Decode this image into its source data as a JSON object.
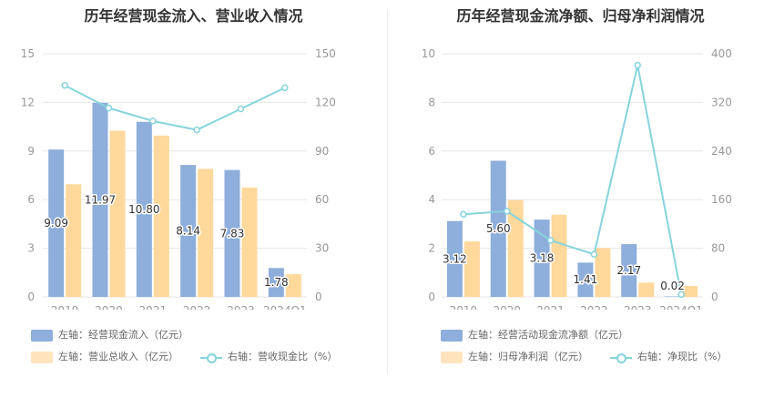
{
  "colors": {
    "bar1": "#8eaedb",
    "bar2": "#ffd89b",
    "line": "#86d4dc",
    "grid": "#e6e6e6",
    "axis_text": "#999999"
  },
  "panels": [
    {
      "title": "历年经营现金流入、营业收入情况",
      "legend": {
        "bar1": "左轴：经营现金流入（亿元）",
        "bar2": "左轴：营业总收入（亿元）",
        "line": "右轴：营收现金比（%）"
      },
      "chart_data": {
        "type": "bar",
        "categories": [
          "2019",
          "2020",
          "2021",
          "2022",
          "2023",
          "2024Q1"
        ],
        "left_ticks": [
          "0",
          "3",
          "6",
          "9",
          "12",
          "15"
        ],
        "right_ticks": [
          "0",
          "30",
          "60",
          "90",
          "120",
          "150"
        ],
        "ylim_left": [
          0,
          15
        ],
        "ylim_right": [
          0,
          150
        ],
        "series": [
          {
            "name": "左轴：经营现金流入（亿元）",
            "axis": "left",
            "type": "bar",
            "values": [
              9.09,
              11.97,
              10.8,
              8.14,
              7.83,
              1.78
            ],
            "labels": [
              "9.09",
              "11.97",
              "10.80",
              "8.14",
              "7.83",
              "1.78"
            ]
          },
          {
            "name": "左轴：营业总收入（亿元）",
            "axis": "left",
            "type": "bar",
            "values": [
              6.95,
              10.25,
              9.95,
              7.9,
              6.75,
              1.4
            ]
          },
          {
            "name": "右轴：营收现金比（%）",
            "axis": "right",
            "type": "line",
            "values": [
              130.5,
              116.5,
              108.5,
              103,
              116,
              129
            ]
          }
        ]
      }
    },
    {
      "title": "历年经营现金流净额、归母净利润情况",
      "legend": {
        "bar1": "左轴：经营活动现金流净额（亿元）",
        "bar2": "左轴：归母净利润（亿元）",
        "line": "右轴：净现比（%）"
      },
      "chart_data": {
        "type": "bar",
        "categories": [
          "2019",
          "2020",
          "2021",
          "2022",
          "2023",
          "2024Q1"
        ],
        "left_ticks": [
          "0",
          "2",
          "4",
          "6",
          "8",
          "10"
        ],
        "right_ticks": [
          "0",
          "80",
          "160",
          "240",
          "320",
          "400"
        ],
        "ylim_left": [
          0,
          10
        ],
        "ylim_right": [
          0,
          400
        ],
        "series": [
          {
            "name": "左轴：经营活动现金流净额（亿元）",
            "axis": "left",
            "type": "bar",
            "values": [
              3.12,
              5.6,
              3.18,
              1.41,
              2.17,
              0.02
            ],
            "labels": [
              "3.12",
              "5.60",
              "3.18",
              "1.41",
              "2.17",
              "0.02"
            ]
          },
          {
            "name": "左轴：归母净利润（亿元）",
            "axis": "left",
            "type": "bar",
            "values": [
              2.28,
              3.98,
              3.38,
              2.01,
              0.59,
              0.45
            ]
          },
          {
            "name": "右轴：净现比（%）",
            "axis": "right",
            "type": "line",
            "values": [
              136,
              141,
              93,
              70,
              381,
              4
            ]
          }
        ]
      }
    }
  ]
}
